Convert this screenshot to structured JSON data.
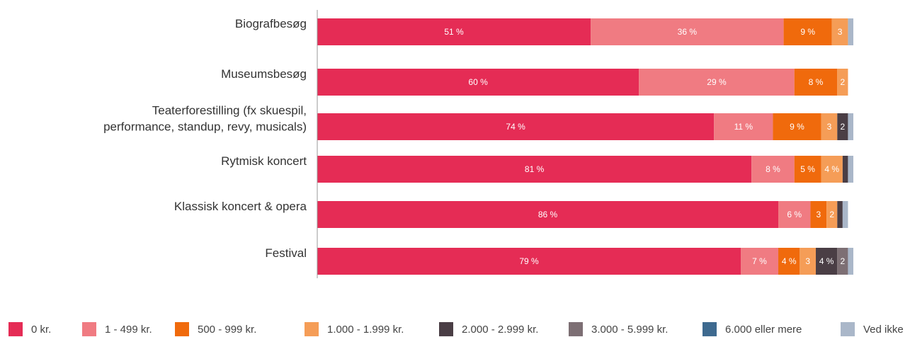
{
  "chart_data": {
    "type": "bar",
    "orientation": "horizontal",
    "stacked": true,
    "categories": [
      [
        "Biografbesøg"
      ],
      [
        "Museumsbesøg"
      ],
      [
        "Teaterforestilling (fx skuespil,",
        "performance, standup, revy, musicals)"
      ],
      [
        "Rytmisk koncert"
      ],
      [
        "Klassisk koncert & opera"
      ],
      [
        "Festival"
      ]
    ],
    "series": [
      {
        "name": "0 kr.",
        "color": "#e52c55",
        "values": [
          51,
          60,
          74,
          81,
          86,
          79
        ],
        "labels": [
          "51 %",
          "60 %",
          "74 %",
          "81 %",
          "86 %",
          "79 %"
        ]
      },
      {
        "name": "1 - 499 kr.",
        "color": "#f07b82",
        "values": [
          36,
          29,
          11,
          8,
          6,
          7
        ],
        "labels": [
          "36 %",
          "29 %",
          "11 %",
          "8 %",
          "6 %",
          "7 %"
        ]
      },
      {
        "name": "500 - 999 kr.",
        "color": "#f06a0c",
        "values": [
          9,
          8,
          9,
          5,
          3,
          4
        ],
        "labels": [
          "9 %",
          "8 %",
          "9 %",
          "5 %",
          "3",
          "4 %"
        ]
      },
      {
        "name": "1.000 - 1.999 kr.",
        "color": "#f59d57",
        "values": [
          3,
          2,
          3,
          4,
          2,
          3
        ],
        "labels": [
          "3",
          "2",
          "3",
          "4 %",
          "2",
          "3"
        ]
      },
      {
        "name": "2.000 - 2.999 kr.",
        "color": "#4a3e45",
        "values": [
          0,
          0,
          2,
          1,
          1,
          4
        ],
        "labels": [
          "",
          "",
          "2",
          "",
          "",
          "4 %"
        ]
      },
      {
        "name": "3.000 - 5.999 kr.",
        "color": "#7d6f74",
        "values": [
          0,
          0,
          0,
          0,
          0,
          2
        ],
        "labels": [
          "",
          "",
          "",
          "",
          "",
          "2"
        ]
      },
      {
        "name": "6.000 eller mere",
        "color": "#3e6a8f",
        "values": [
          0,
          0,
          0,
          0,
          0,
          0
        ],
        "labels": [
          "",
          "",
          "",
          "",
          "",
          ""
        ]
      },
      {
        "name": "Ved ikke",
        "color": "#aab7c9",
        "values": [
          1,
          0,
          1,
          1,
          1,
          1
        ],
        "labels": [
          "",
          "",
          "",
          "",
          "",
          ""
        ]
      }
    ],
    "xlim": [
      0,
      100
    ],
    "grid": false,
    "legend_position": "bottom"
  }
}
